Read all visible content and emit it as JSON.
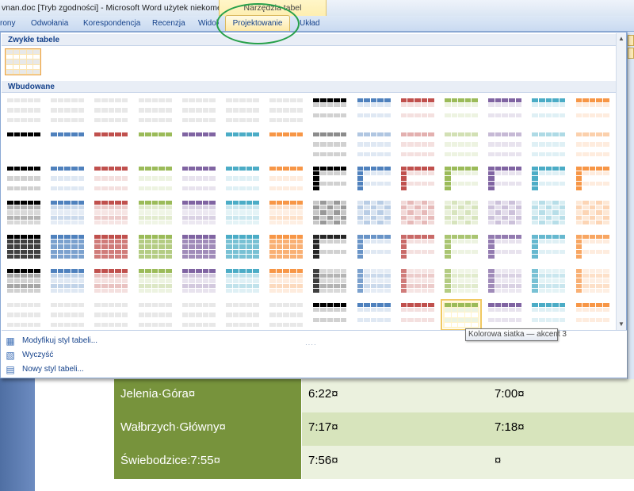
{
  "window": {
    "title": "vnan.doc [Tryb zgodności] - Microsoft Word użytek niekomercy...",
    "context_group_label": "Narzędzia tabel"
  },
  "ribbon": {
    "tabs": [
      {
        "label": "rony",
        "active": false
      },
      {
        "label": "Odwołania",
        "active": false
      },
      {
        "label": "Korespondencja",
        "active": false
      },
      {
        "label": "Recenzja",
        "active": false
      },
      {
        "label": "Widok",
        "active": false
      },
      {
        "label": "Projektowanie",
        "active": true
      },
      {
        "label": "Układ",
        "active": false
      }
    ]
  },
  "gallery": {
    "section_plain": "Zwykłe tabele",
    "section_builtin": "Wbudowane",
    "accent_colors": [
      "#000000",
      "#4f81bd",
      "#c0504d",
      "#9bbb59",
      "#8064a2",
      "#4bacc6",
      "#f79646"
    ],
    "style_variants": [
      "plain",
      "shading",
      "light-list",
      "light-grid",
      "medium-shading-1",
      "medium-shading-2",
      "medium-list",
      "medium-grid",
      "dark-list",
      "colorful-shading",
      "colorful-list",
      "colorful-grid"
    ],
    "selected_style_name": "Kolorowa siatka — akcent 3"
  },
  "menu": {
    "items": [
      {
        "label": "Modyfikuj styl tabeli...",
        "icon": "modify-table-style-icon"
      },
      {
        "label": "Wyczyść",
        "icon": "eraser-icon"
      },
      {
        "label": "Nowy styl tabeli...",
        "icon": "new-table-style-icon"
      }
    ]
  },
  "document_table": {
    "rows": [
      [
        "Jelenia·Góra¤",
        "6:22¤",
        "7:00¤"
      ],
      [
        "Wałbrzych·Główny¤",
        "7:17¤",
        "7:18¤"
      ],
      [
        "Świebodzice:7:55¤",
        "7:56¤",
        "¤"
      ]
    ]
  }
}
